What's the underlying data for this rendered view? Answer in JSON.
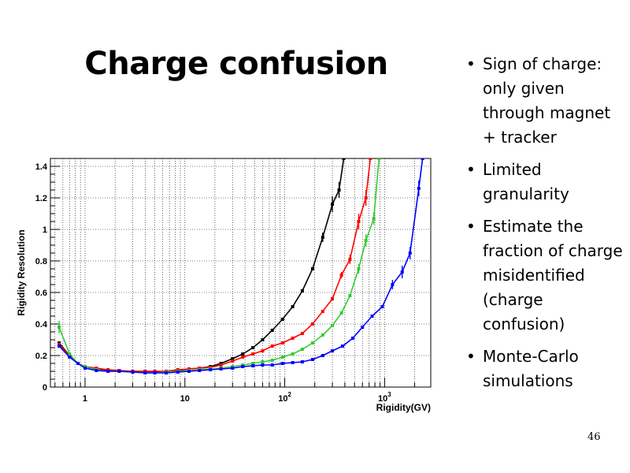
{
  "slide": {
    "title": "Charge confusion",
    "page_number": "46",
    "bullets": [
      "Sign of charge: only given through magnet + tracker",
      "Limited granularity",
      "Estimate the fraction of charge misidentified (charge confusion)",
      "Monte-Carlo simulations"
    ]
  },
  "chart_data": {
    "type": "line",
    "xlabel": "Rigidity(GV)",
    "ylabel": "Rigidity  Resolution",
    "xscale": "log",
    "xlim": [
      0.45,
      2900
    ],
    "ylim": [
      0,
      1.45
    ],
    "grid": true,
    "x_ticks": [
      {
        "value": 1,
        "label": "1"
      },
      {
        "value": 10,
        "label": "10"
      },
      {
        "value": 100,
        "label": "10",
        "sup": "2"
      },
      {
        "value": 1000,
        "label": "10",
        "sup": "3"
      }
    ],
    "y_ticks": [
      {
        "value": 0,
        "label": "0"
      },
      {
        "value": 0.2,
        "label": "0.2"
      },
      {
        "value": 0.4,
        "label": "0.4"
      },
      {
        "value": 0.6,
        "label": "0.6"
      },
      {
        "value": 0.8,
        "label": "0.8"
      },
      {
        "value": 1.0,
        "label": "1"
      },
      {
        "value": 1.2,
        "label": "1.2"
      },
      {
        "value": 1.4,
        "label": "1.4"
      }
    ],
    "series": [
      {
        "color": "#000000",
        "points": [
          [
            0.55,
            0.28
          ],
          [
            0.7,
            0.2
          ],
          [
            0.85,
            0.15
          ],
          [
            1,
            0.13
          ],
          [
            1.3,
            0.11
          ],
          [
            1.7,
            0.105
          ],
          [
            2.2,
            0.105
          ],
          [
            3,
            0.1
          ],
          [
            4,
            0.1
          ],
          [
            5,
            0.098
          ],
          [
            6.5,
            0.1
          ],
          [
            8.5,
            0.105
          ],
          [
            11,
            0.115
          ],
          [
            14,
            0.12
          ],
          [
            18,
            0.13
          ],
          [
            23,
            0.15
          ],
          [
            30,
            0.18
          ],
          [
            38,
            0.21
          ],
          [
            48,
            0.25
          ],
          [
            60,
            0.3
          ],
          [
            75,
            0.36
          ],
          [
            95,
            0.43
          ],
          [
            120,
            0.51
          ],
          [
            150,
            0.61
          ],
          [
            190,
            0.75
          ],
          [
            240,
            0.95
          ],
          [
            300,
            1.16
          ],
          [
            350,
            1.25
          ],
          [
            390,
            1.45
          ]
        ],
        "errors": [
          [
            240,
            0.95,
            0.03
          ],
          [
            300,
            1.16,
            0.05
          ],
          [
            350,
            1.25,
            0.05
          ]
        ]
      },
      {
        "color": "#ff0000",
        "points": [
          [
            0.55,
            0.27
          ],
          [
            0.7,
            0.2
          ],
          [
            0.85,
            0.15
          ],
          [
            1,
            0.13
          ],
          [
            1.3,
            0.12
          ],
          [
            1.7,
            0.11
          ],
          [
            2.2,
            0.105
          ],
          [
            3,
            0.1
          ],
          [
            4,
            0.1
          ],
          [
            5,
            0.1
          ],
          [
            6.5,
            0.1
          ],
          [
            8.5,
            0.11
          ],
          [
            11,
            0.115
          ],
          [
            14,
            0.12
          ],
          [
            18,
            0.125
          ],
          [
            23,
            0.14
          ],
          [
            30,
            0.165
          ],
          [
            38,
            0.19
          ],
          [
            48,
            0.21
          ],
          [
            60,
            0.23
          ],
          [
            75,
            0.26
          ],
          [
            95,
            0.28
          ],
          [
            120,
            0.31
          ],
          [
            150,
            0.34
          ],
          [
            190,
            0.4
          ],
          [
            240,
            0.48
          ],
          [
            300,
            0.56
          ],
          [
            370,
            0.71
          ],
          [
            450,
            0.81
          ],
          [
            550,
            1.05
          ],
          [
            650,
            1.2
          ],
          [
            720,
            1.45
          ]
        ],
        "errors": [
          [
            370,
            0.71,
            0.02
          ],
          [
            450,
            0.81,
            0.03
          ],
          [
            550,
            1.05,
            0.05
          ],
          [
            650,
            1.2,
            0.05
          ]
        ]
      },
      {
        "color": "#33cc33",
        "points": [
          [
            0.55,
            0.38
          ],
          [
            0.7,
            0.21
          ],
          [
            0.85,
            0.15
          ],
          [
            1,
            0.13
          ],
          [
            1.3,
            0.11
          ],
          [
            1.7,
            0.1
          ],
          [
            2.2,
            0.1
          ],
          [
            3,
            0.095
          ],
          [
            4,
            0.09
          ],
          [
            5,
            0.09
          ],
          [
            6.5,
            0.095
          ],
          [
            8.5,
            0.1
          ],
          [
            11,
            0.105
          ],
          [
            14,
            0.11
          ],
          [
            18,
            0.115
          ],
          [
            23,
            0.12
          ],
          [
            30,
            0.13
          ],
          [
            38,
            0.14
          ],
          [
            48,
            0.15
          ],
          [
            60,
            0.16
          ],
          [
            75,
            0.17
          ],
          [
            95,
            0.19
          ],
          [
            120,
            0.21
          ],
          [
            150,
            0.24
          ],
          [
            190,
            0.28
          ],
          [
            240,
            0.33
          ],
          [
            300,
            0.39
          ],
          [
            370,
            0.47
          ],
          [
            450,
            0.58
          ],
          [
            550,
            0.75
          ],
          [
            650,
            0.93
          ],
          [
            780,
            1.07
          ],
          [
            880,
            1.45
          ]
        ],
        "errors": [
          [
            0.55,
            0.38,
            0.04
          ],
          [
            550,
            0.75,
            0.03
          ],
          [
            650,
            0.93,
            0.04
          ],
          [
            780,
            1.07,
            0.04
          ]
        ]
      },
      {
        "color": "#0000ff",
        "points": [
          [
            0.55,
            0.26
          ],
          [
            0.7,
            0.19
          ],
          [
            0.85,
            0.15
          ],
          [
            1,
            0.12
          ],
          [
            1.3,
            0.105
          ],
          [
            1.7,
            0.1
          ],
          [
            2.2,
            0.1
          ],
          [
            3,
            0.095
          ],
          [
            4,
            0.09
          ],
          [
            5,
            0.09
          ],
          [
            6.5,
            0.09
          ],
          [
            8.5,
            0.095
          ],
          [
            11,
            0.1
          ],
          [
            14,
            0.105
          ],
          [
            18,
            0.11
          ],
          [
            23,
            0.115
          ],
          [
            30,
            0.12
          ],
          [
            38,
            0.13
          ],
          [
            48,
            0.135
          ],
          [
            60,
            0.14
          ],
          [
            75,
            0.14
          ],
          [
            95,
            0.15
          ],
          [
            120,
            0.155
          ],
          [
            150,
            0.16
          ],
          [
            190,
            0.175
          ],
          [
            240,
            0.2
          ],
          [
            300,
            0.23
          ],
          [
            380,
            0.26
          ],
          [
            480,
            0.31
          ],
          [
            600,
            0.38
          ],
          [
            750,
            0.45
          ],
          [
            950,
            0.51
          ],
          [
            1200,
            0.65
          ],
          [
            1500,
            0.73
          ],
          [
            1800,
            0.85
          ],
          [
            2200,
            1.26
          ],
          [
            2400,
            1.45
          ]
        ],
        "errors": [
          [
            1200,
            0.65,
            0.03
          ],
          [
            1500,
            0.73,
            0.04
          ],
          [
            1800,
            0.85,
            0.04
          ],
          [
            2200,
            1.26,
            0.05
          ]
        ]
      }
    ]
  }
}
